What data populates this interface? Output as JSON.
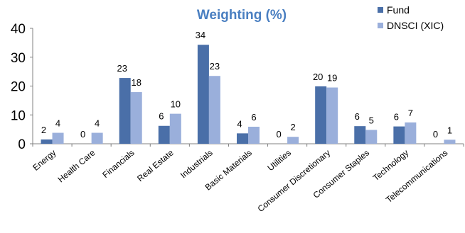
{
  "chart_data": {
    "type": "bar",
    "title": "Weighting (%)",
    "xlabel": "",
    "ylabel": "",
    "ylim": [
      0,
      40
    ],
    "yticks": [
      0,
      10,
      20,
      30,
      40
    ],
    "grid": false,
    "legend_position": "top-right",
    "categories": [
      "Energy",
      "Health Care",
      "Financials",
      "Real Estate",
      "Industrials",
      "Basic Materials",
      "Utilities",
      "Consumer Discretionary",
      "Consumer Staples",
      "Technology",
      "Telecommunications"
    ],
    "series": [
      {
        "name": "Fund",
        "color": "#4a6fa8",
        "values": [
          1.5,
          0,
          22.8,
          6.2,
          34.3,
          3.6,
          0,
          19.9,
          6.1,
          6.0,
          0
        ],
        "labels": [
          "2",
          "0",
          "23",
          "6",
          "34",
          "4",
          "0",
          "20",
          "6",
          "6",
          "0"
        ]
      },
      {
        "name": "DNSCI (XIC)",
        "color": "#9aafdb",
        "values": [
          3.8,
          3.8,
          17.9,
          10.4,
          23.5,
          5.9,
          2.4,
          19.5,
          4.8,
          7.4,
          1.4
        ],
        "labels": [
          "4",
          "4",
          "18",
          "10",
          "23",
          "6",
          "2",
          "19",
          "5",
          "7",
          "1"
        ]
      }
    ],
    "title_color": "#4a7fc1"
  }
}
